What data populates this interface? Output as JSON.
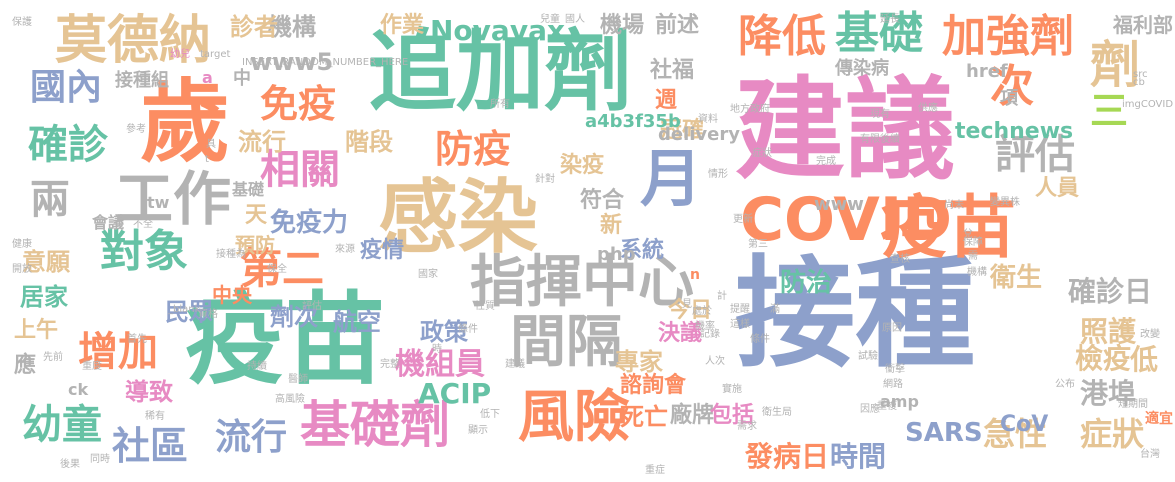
{
  "palette": {
    "green": "#66c2a5",
    "orange": "#fc8d62",
    "blue": "#8da0cb",
    "pink": "#e78ac3",
    "lime": "#a6d854",
    "yellow": "#ffd92f",
    "tan": "#e5c494",
    "gray": "#b3b3b3"
  },
  "words": [
    "接種",
    "建議",
    "疫苗",
    "追加劑",
    "感染",
    "歲",
    "疫苗",
    "COVID",
    "指揮中心",
    "月",
    "間隔",
    "風險",
    "基礎劑",
    "莫德納",
    "工作",
    "對象",
    "降低",
    "基礎",
    "加強劑",
    "次",
    "劑",
    "確診",
    "國內",
    "第二",
    "兩",
    "三",
    "相關",
    "免疫",
    "防疫",
    "評估",
    "增加",
    "幼童",
    "社區",
    "流行",
    "流行",
    "階段",
    "機構",
    "診者",
    "作業",
    "Novavax",
    "機場",
    "前述",
    "www5",
    "接種組",
    "SARS",
    "急性",
    "症狀",
    "發病日",
    "時間",
    "廠牌",
    "死亡",
    "包括",
    "諮詢會",
    "專家",
    "決議",
    "今日",
    "照護",
    "檢疫",
    "港埠",
    "低",
    "確診日",
    "機組員",
    "政策",
    "ACIP",
    "航空",
    "劑次",
    "中央",
    "民眾",
    "居家",
    "上午",
    "應",
    "導致",
    "意願",
    "預防",
    "天",
    "免疫力",
    "疫情",
    "系統",
    "新",
    "符合",
    "染疫",
    "週",
    "冠確",
    "社福",
    "a4b3f35b",
    "delivery",
    "technews",
    "CoV",
    "www",
    "衛生",
    "防治",
    "傳染病",
    "href",
    "人員",
    "福利部",
    "項",
    "amp",
    "基礎",
    "中",
    "a",
    "會議",
    "php",
    "tw",
    "n",
    "ck",
    "imgCOVID",
    "保護",
    "兒童",
    "國人",
    "延長",
    "現有",
    "資料",
    "症狀",
    "情形",
    "健康",
    "開放",
    "接種為",
    "來源",
    "國家",
    "地方政府",
    "所有",
    "針對",
    "更新",
    "條件",
    "建議",
    "第三",
    "資格",
    "首先",
    "先前",
    "重度",
    "評估",
    "完整",
    "參考",
    "供應",
    "後續",
    "完成",
    "實施",
    "稀有",
    "高風險",
    "持續",
    "同時",
    "顯示",
    "後果",
    "時",
    "重症",
    "滿",
    "性質",
    "衛生局",
    "需求",
    "尚未",
    "計",
    "重複",
    "條件",
    "人次",
    "機率",
    "處於",
    "低下",
    "查核",
    "機構",
    "幼兒",
    "試驗",
    "醫師",
    "變異株",
    "台灣",
    "短期間",
    "適宜",
    "因應",
    "_blank",
    "src",
    "target",
    "INSERT_RANDOM_NUMBER_HERE",
    "cb",
    "公布",
    "具",
    "t",
    "不全",
    "保全",
    "有限",
    "保障",
    "需",
    "兌",
    "見",
    "記錄",
    "原因",
    "改變",
    "衝擊",
    "網路",
    "這樣",
    "提醒",
    "重症",
    "穩定",
    "解釋",
    "附件",
    "功能",
    "入境",
    "交談",
    "臨床",
    "病情",
    "後面",
    "交替",
    "需要"
  ]
}
